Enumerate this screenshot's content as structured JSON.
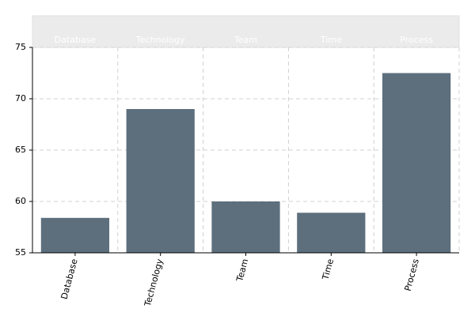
{
  "chart_data": {
    "type": "bar",
    "categories": [
      "Database",
      "Technology",
      "Team",
      "Time",
      "Process"
    ],
    "values": [
      58.4,
      69.0,
      60.0,
      58.9,
      72.5
    ],
    "color": "#5d6f7d",
    "ylim": [
      55,
      75
    ],
    "yticks": [
      55,
      60,
      65,
      70,
      75
    ],
    "grid": true
  }
}
